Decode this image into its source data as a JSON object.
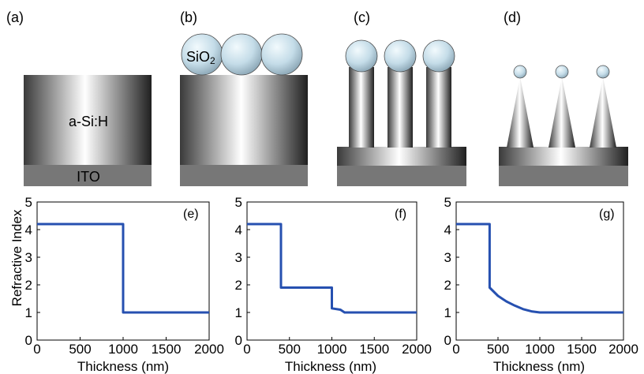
{
  "diagram": {
    "panels": [
      {
        "label": "(a)",
        "structure": "planar film"
      },
      {
        "label": "(b)",
        "structure": "film with SiO2 spheres"
      },
      {
        "label": "(c)",
        "structure": "nanopillars with sphere caps"
      },
      {
        "label": "(d)",
        "structure": "nanocones with sphere caps"
      }
    ],
    "labels": {
      "film": "a-Si:H",
      "substrate": "ITO",
      "sphere_text": "SiO",
      "sphere_sub": "2"
    },
    "colors": {
      "substrate": "#777777",
      "sphere_fill": "#c4dce8",
      "curve": "#2650b0"
    }
  },
  "chart_data": [
    {
      "type": "line",
      "panel_label": "(e)",
      "ylabel": "Refractive Index",
      "xlabel": "Thickness (nm)",
      "xlim": [
        0,
        2000
      ],
      "ylim": [
        0,
        5
      ],
      "xticks": [
        0,
        500,
        1000,
        1500,
        2000
      ],
      "yticks": [
        0,
        1,
        2,
        3,
        4,
        5
      ],
      "series": [
        {
          "x": [
            0,
            1000,
            1000,
            2000
          ],
          "y": [
            4.2,
            4.2,
            1.0,
            1.0
          ]
        }
      ]
    },
    {
      "type": "line",
      "panel_label": "(f)",
      "ylabel": "",
      "xlabel": "Thickness (nm)",
      "xlim": [
        0,
        2000
      ],
      "ylim": [
        0,
        5
      ],
      "xticks": [
        0,
        500,
        1000,
        1500,
        2000
      ],
      "yticks": [
        0,
        1,
        2,
        3,
        4,
        5
      ],
      "series": [
        {
          "x": [
            0,
            400,
            400,
            1000,
            1000,
            1100,
            1150,
            2000
          ],
          "y": [
            4.2,
            4.2,
            1.9,
            1.9,
            1.15,
            1.1,
            1.0,
            1.0
          ]
        }
      ]
    },
    {
      "type": "line",
      "panel_label": "(g)",
      "ylabel": "",
      "xlabel": "Thickness (nm)",
      "xlim": [
        0,
        2000
      ],
      "ylim": [
        0,
        5
      ],
      "xticks": [
        0,
        500,
        1000,
        1500,
        2000
      ],
      "yticks": [
        0,
        1,
        2,
        3,
        4,
        5
      ],
      "series": [
        {
          "x": [
            0,
            400,
            400,
            500,
            600,
            700,
            800,
            900,
            1000,
            2000
          ],
          "y": [
            4.2,
            4.2,
            1.9,
            1.6,
            1.4,
            1.25,
            1.12,
            1.04,
            1.0,
            1.0
          ]
        }
      ]
    }
  ]
}
